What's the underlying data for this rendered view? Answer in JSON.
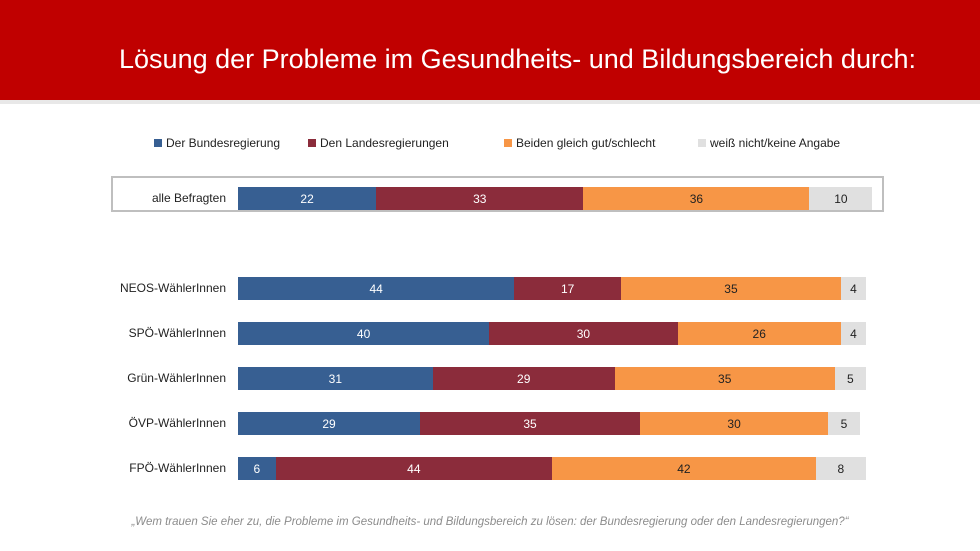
{
  "title": "Lösung der Probleme im Gesundheits- und Bildungsbereich durch:",
  "footer": "„Wem trauen Sie eher zu, die Probleme im Gesundheits- und Bildungsbereich zu lösen: der Bundesregierung oder den Landesregierungen?“",
  "chart_data": {
    "type": "bar",
    "orientation": "horizontal",
    "stacked": true,
    "legend_position": "top",
    "categories": [
      "alle Befragten",
      "NEOS-WählerInnen",
      "SPÖ-WählerInnen",
      "Grün-WählerInnen",
      "ÖVP-WählerInnen",
      "FPÖ-WählerInnen"
    ],
    "series": [
      {
        "name": "Der Bundesregierung",
        "color": "#375f92",
        "values": [
          22,
          44,
          40,
          31,
          29,
          6
        ]
      },
      {
        "name": "Den Landesregierungen",
        "color": "#8b2c3b",
        "values": [
          33,
          17,
          30,
          29,
          35,
          44
        ]
      },
      {
        "name": "Beiden gleich gut/schlecht",
        "color": "#f79646",
        "values": [
          36,
          35,
          26,
          35,
          30,
          42
        ]
      },
      {
        "name": "weiß nicht/keine Angabe",
        "color": "#e0e0e0",
        "values": [
          10,
          4,
          4,
          5,
          5,
          8
        ]
      }
    ]
  }
}
